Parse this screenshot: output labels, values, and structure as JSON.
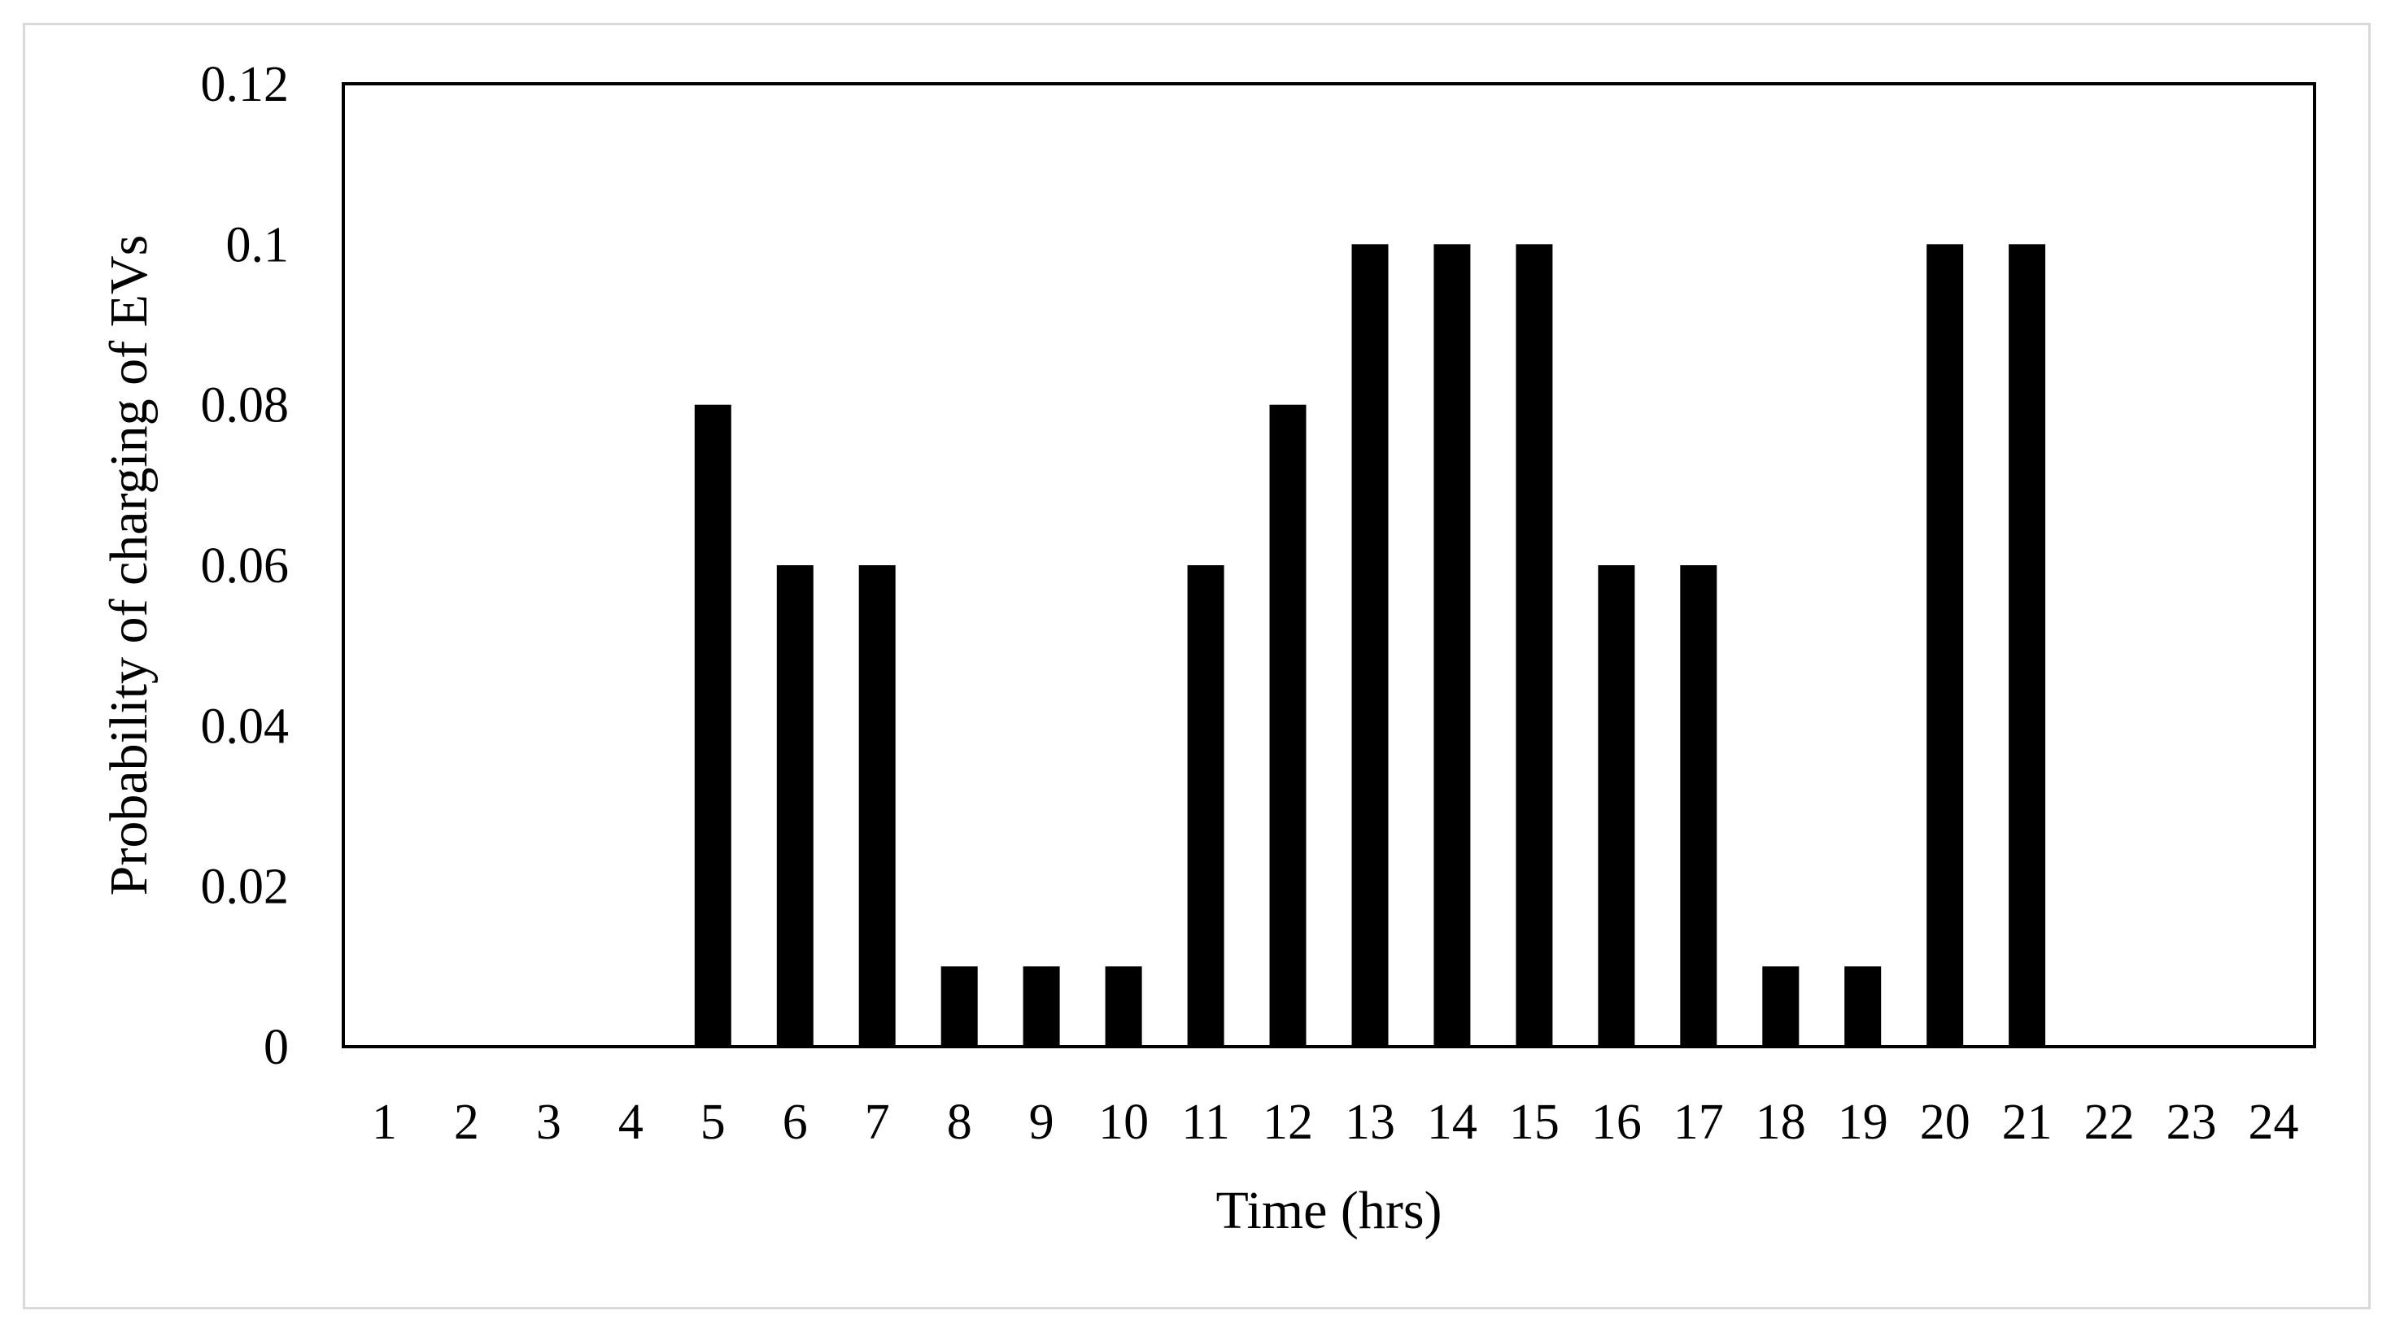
{
  "chart_data": {
    "type": "bar",
    "title": "",
    "xlabel": "Time (hrs)",
    "ylabel": "Probability of charging of EVs",
    "categories": [
      "1",
      "2",
      "3",
      "4",
      "5",
      "6",
      "7",
      "8",
      "9",
      "10",
      "11",
      "12",
      "13",
      "14",
      "15",
      "16",
      "17",
      "18",
      "19",
      "20",
      "21",
      "22",
      "23",
      "24"
    ],
    "values": [
      0,
      0,
      0,
      0,
      0.08,
      0.06,
      0.06,
      0.01,
      0.01,
      0.01,
      0.06,
      0.08,
      0.1,
      0.1,
      0.1,
      0.06,
      0.06,
      0.01,
      0.01,
      0.1,
      0.1,
      0,
      0,
      0
    ],
    "ylim": [
      0,
      0.12
    ],
    "yticks": [
      0,
      0.02,
      0.04,
      0.06,
      0.08,
      0.1,
      0.12
    ],
    "ytick_labels": [
      "0",
      "0.02",
      "0.04",
      "0.06",
      "0.08",
      "0.1",
      "0.12"
    ],
    "grid": false,
    "legend": "none",
    "bar_color": "#000000"
  }
}
